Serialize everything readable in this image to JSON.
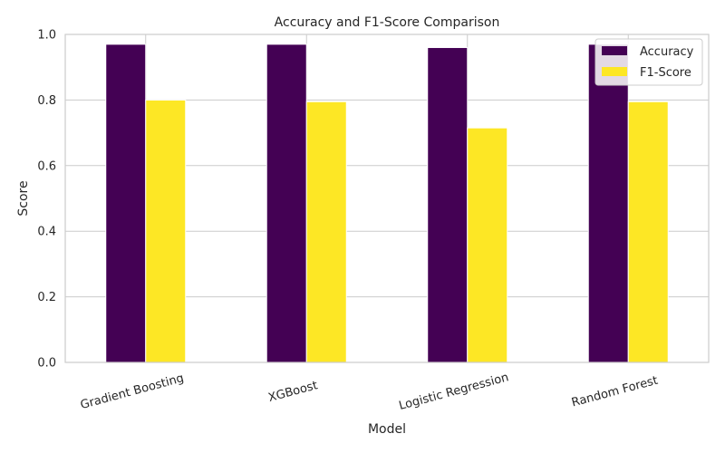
{
  "chart_data": {
    "type": "bar",
    "title": "Accuracy and F1-Score Comparison",
    "xlabel": "Model",
    "ylabel": "Score",
    "categories": [
      "Gradient Boosting",
      "XGBoost",
      "Logistic Regression",
      "Random Forest"
    ],
    "series": [
      {
        "name": "Accuracy",
        "values": [
          0.97,
          0.97,
          0.96,
          0.97
        ],
        "color": "#440154"
      },
      {
        "name": "F1-Score",
        "values": [
          0.8,
          0.795,
          0.715,
          0.795
        ],
        "color": "#fde725"
      }
    ],
    "ylim": [
      0,
      1.0
    ],
    "yticks": [
      "0.0",
      "0.2",
      "0.4",
      "0.6",
      "0.8",
      "1.0"
    ],
    "grid": true,
    "legend_position": "top-right"
  }
}
